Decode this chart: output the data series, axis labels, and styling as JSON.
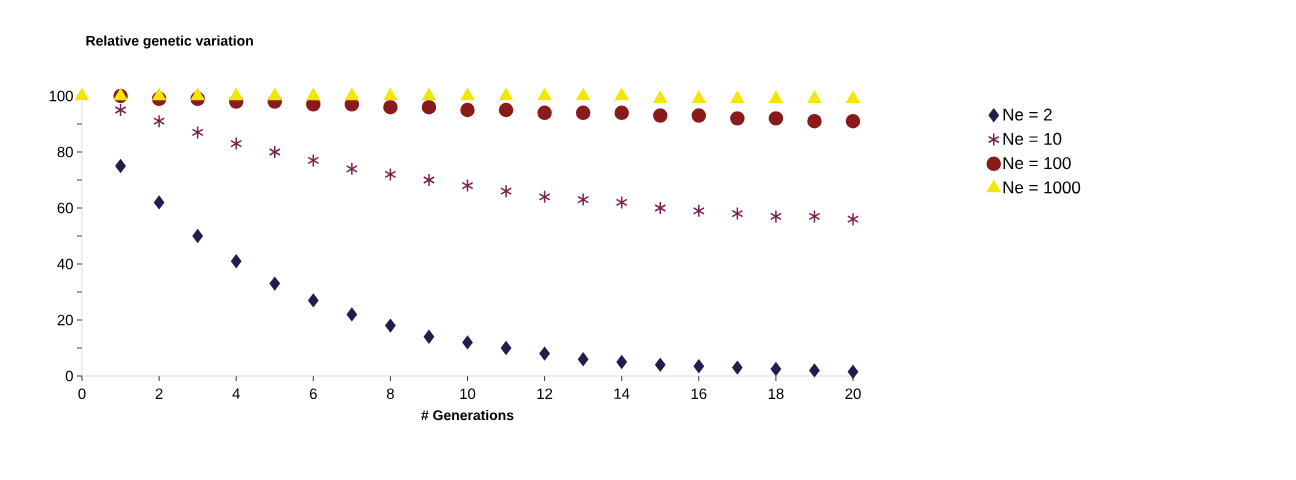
{
  "chart_data": {
    "type": "scatter",
    "title": "Relative genetic variation",
    "xlabel": "# Generations",
    "x": [
      0,
      1,
      2,
      3,
      4,
      5,
      6,
      7,
      8,
      9,
      10,
      11,
      12,
      13,
      14,
      15,
      16,
      17,
      18,
      19,
      20
    ],
    "series": [
      {
        "name": "Ne = 2",
        "color": "#1f1f4f",
        "marker": "diamond",
        "values": [
          null,
          75,
          62,
          50,
          41,
          33,
          27,
          22,
          18,
          14,
          12,
          10,
          8,
          6,
          5,
          4,
          3.5,
          3,
          2.5,
          2,
          1.5
        ]
      },
      {
        "name": "Ne = 10",
        "color": "#7a1f4f",
        "marker": "cross",
        "values": [
          null,
          95,
          91,
          87,
          83,
          80,
          77,
          74,
          72,
          70,
          68,
          66,
          64,
          63,
          62,
          60,
          59,
          58,
          57,
          57,
          56
        ]
      },
      {
        "name": "Ne = 100",
        "color": "#8b1a1a",
        "marker": "circle",
        "values": [
          null,
          100,
          99,
          99,
          98,
          98,
          97,
          97,
          96,
          96,
          95,
          95,
          94,
          94,
          94,
          93,
          93,
          92,
          92,
          91,
          91
        ]
      },
      {
        "name": "Ne = 1000",
        "color": "#f5e600",
        "marker": "triangle",
        "values": [
          100,
          100,
          100,
          100,
          100,
          100,
          100,
          100,
          100,
          100,
          100,
          100,
          100,
          100,
          100,
          99,
          99,
          99,
          99,
          99,
          99
        ]
      }
    ],
    "xlim": [
      0,
      20
    ],
    "xticks": [
      0,
      2,
      4,
      6,
      8,
      10,
      12,
      14,
      16,
      18,
      20
    ],
    "ylim": [
      0,
      100
    ],
    "yticks": [
      0,
      {
        "value": 10,
        "label": null
      },
      20,
      {
        "value": 30,
        "label": null
      },
      40,
      {
        "value": 50,
        "label": null
      },
      60,
      {
        "value": 70,
        "label": null
      },
      80,
      {
        "value": 90,
        "label": null
      },
      100
    ],
    "legend": "right",
    "grid": false
  }
}
